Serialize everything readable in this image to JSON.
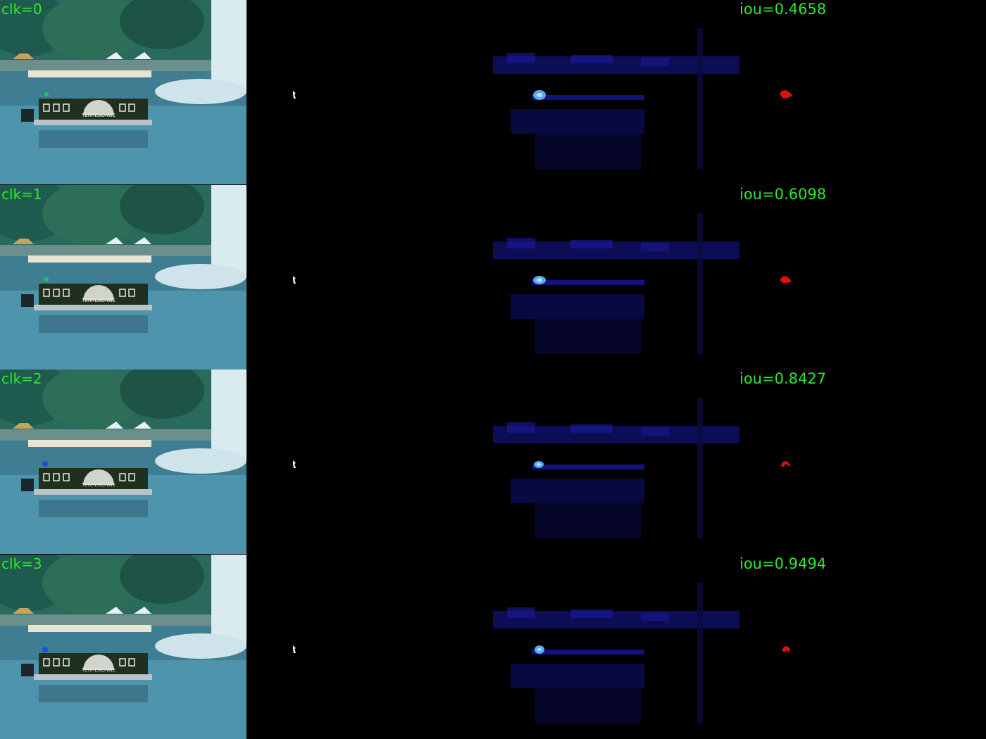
{
  "rows": [
    {
      "clk": "clk=0",
      "iou": "iou=0.4658",
      "click_color": "#22c55e"
    },
    {
      "clk": "clk=1",
      "iou": "iou=0.6098",
      "click_color": "#22c55e"
    },
    {
      "clk": "clk=2",
      "iou": "iou=0.8427",
      "click_color": "#1d4ed8"
    },
    {
      "clk": "clk=3",
      "iou": "iou=0.9494",
      "click_color": "#1d4ed8"
    }
  ],
  "boat_text": "TERREBONNE",
  "colors": {
    "label": "#2ee82e",
    "mask_red": "#e01010",
    "heatmap_hot": "#55aaff",
    "heatmap_dim": "#1a1aa0",
    "scene_sky": "#cfe6ee",
    "scene_water": "#4c8fa8",
    "scene_trees": "#1f5a4e"
  }
}
